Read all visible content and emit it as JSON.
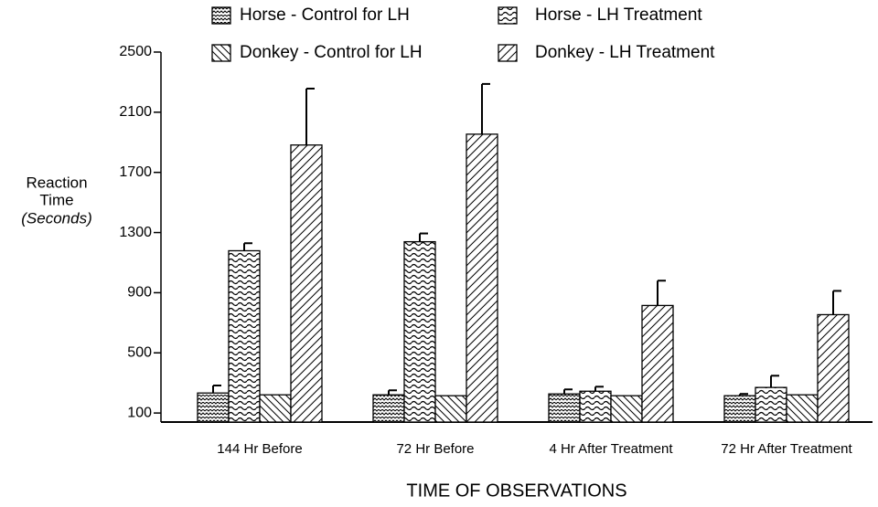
{
  "chart_data": {
    "type": "bar",
    "categories": [
      "144 Hr Before",
      "72 Hr Before",
      "4 Hr After Treatment",
      "72 Hr After Treatment"
    ],
    "series": [
      {
        "name": "Horse - Control for LH",
        "color": "#000000",
        "values": [
          233,
          221,
          227,
          215
        ],
        "errors": [
          50,
          30,
          30,
          12
        ]
      },
      {
        "name": "Horse - LH Treatment",
        "color": "#000000",
        "values": [
          1179,
          1239,
          245,
          270
        ],
        "errors": [
          50,
          55,
          30,
          78
        ]
      },
      {
        "name": "Donkey - Control for LH",
        "color": "#000000",
        "values": [
          221,
          215,
          215,
          221
        ],
        "errors": [
          null,
          null,
          null,
          null
        ]
      },
      {
        "name": "Donkey - LH Treatment",
        "color": "#000000",
        "values": [
          1882,
          1954,
          815,
          754
        ],
        "errors": [
          375,
          334,
          165,
          158
        ]
      }
    ],
    "ylabel": [
      "Reaction",
      "Time",
      "(Seconds)"
    ],
    "xlabel": "TIME OF OBSERVATIONS",
    "ylim": [
      40,
      2500
    ],
    "yticks": [
      100,
      500,
      900,
      1300,
      1700,
      2100,
      2500
    ]
  }
}
